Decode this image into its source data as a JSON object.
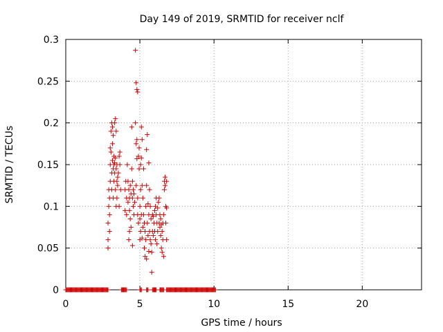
{
  "chart_data": {
    "type": "scatter",
    "title": "Day 149 of 2019, SRMTID for receiver nclf",
    "xlabel": "GPS time / hours",
    "ylabel": "SRMTID / TECUs",
    "xlim": [
      0,
      24
    ],
    "ylim": [
      0,
      0.3
    ],
    "x_ticks": [
      0,
      5,
      10,
      15,
      20
    ],
    "x_tick_labels": [
      "0",
      "5",
      "10",
      "15",
      "20"
    ],
    "y_ticks": [
      0,
      0.05,
      0.1,
      0.15,
      0.2,
      0.25,
      0.3
    ],
    "y_tick_labels": [
      "0",
      "0.05",
      "0.1",
      "0.15",
      "0.2",
      "0.25",
      "0.3"
    ],
    "grid": true,
    "marker": "plus",
    "color": "#cc0000",
    "series": [
      {
        "points": [
          [
            2.85,
            0.06
          ],
          [
            2.85,
            0.05
          ],
          [
            2.85,
            0.08
          ],
          [
            2.9,
            0.1
          ],
          [
            2.9,
            0.12
          ],
          [
            2.95,
            0.11
          ],
          [
            2.95,
            0.09
          ],
          [
            2.95,
            0.07
          ],
          [
            3.0,
            0.13
          ],
          [
            3.0,
            0.15
          ],
          [
            3.0,
            0.17
          ],
          [
            3.05,
            0.165
          ],
          [
            3.05,
            0.19
          ],
          [
            3.1,
            0.14
          ],
          [
            3.1,
            0.12
          ],
          [
            3.1,
            0.2
          ],
          [
            3.15,
            0.155
          ],
          [
            3.15,
            0.175
          ],
          [
            3.15,
            0.195
          ],
          [
            3.2,
            0.145
          ],
          [
            3.2,
            0.11
          ],
          [
            3.2,
            0.185
          ],
          [
            3.25,
            0.15
          ],
          [
            3.25,
            0.16
          ],
          [
            3.25,
            0.13
          ],
          [
            3.3,
            0.14
          ],
          [
            3.3,
            0.152
          ],
          [
            3.3,
            0.2
          ],
          [
            3.35,
            0.158
          ],
          [
            3.35,
            0.205
          ],
          [
            3.35,
            0.12
          ],
          [
            3.4,
            0.19
          ],
          [
            3.4,
            0.145
          ],
          [
            3.4,
            0.1
          ],
          [
            3.45,
            0.11
          ],
          [
            3.45,
            0.13
          ],
          [
            3.45,
            0.15
          ],
          [
            3.5,
            0.125
          ],
          [
            3.5,
            0.135
          ],
          [
            3.55,
            0.14
          ],
          [
            3.6,
            0.16
          ],
          [
            3.6,
            0.1
          ],
          [
            3.65,
            0.15
          ],
          [
            3.65,
            0.165
          ],
          [
            3.7,
            0.12
          ],
          [
            4.0,
            0.12
          ],
          [
            4.0,
            0.095
          ],
          [
            4.05,
            0.13
          ],
          [
            4.1,
            0.11
          ],
          [
            4.1,
            0.09
          ],
          [
            4.15,
            0.15
          ],
          [
            4.2,
            0.105
          ],
          [
            4.2,
            0.13
          ],
          [
            4.25,
            0.12
          ],
          [
            4.25,
            0.06
          ],
          [
            4.3,
            0.11
          ],
          [
            4.3,
            0.07
          ],
          [
            4.3,
            0.095
          ],
          [
            4.35,
            0.125
          ],
          [
            4.35,
            0.085
          ],
          [
            4.4,
            0.115
          ],
          [
            4.4,
            0.075
          ],
          [
            4.45,
            0.195
          ],
          [
            4.45,
            0.145
          ],
          [
            4.5,
            0.11
          ],
          [
            4.5,
            0.13
          ],
          [
            4.5,
            0.053
          ],
          [
            4.55,
            0.1
          ],
          [
            4.55,
            0.12
          ],
          [
            4.6,
            0.09
          ],
          [
            4.6,
            0.115
          ],
          [
            4.65,
            0.105
          ],
          [
            4.7,
            0.287
          ],
          [
            4.7,
            0.2
          ],
          [
            4.75,
            0.248
          ],
          [
            4.75,
            0.175
          ],
          [
            4.75,
            0.125
          ],
          [
            4.8,
            0.24
          ],
          [
            4.8,
            0.18
          ],
          [
            4.8,
            0.157
          ],
          [
            4.85,
            0.237
          ],
          [
            4.85,
            0.11
          ],
          [
            4.85,
            0.09
          ],
          [
            4.9,
            0.16
          ],
          [
            4.9,
            0.08
          ],
          [
            4.95,
            0.17
          ],
          [
            4.95,
            0.145
          ],
          [
            5.0,
            0.1
          ],
          [
            5.0,
            0.085
          ],
          [
            5.0,
            0.06
          ],
          [
            5.05,
            0.15
          ],
          [
            5.05,
            0.12
          ],
          [
            5.05,
            0.07
          ],
          [
            5.1,
            0.195
          ],
          [
            5.1,
            0.158
          ],
          [
            5.1,
            0.09
          ],
          [
            5.15,
            0.18
          ],
          [
            5.15,
            0.125
          ],
          [
            5.15,
            0.062
          ],
          [
            5.2,
            0.11
          ],
          [
            5.2,
            0.075
          ],
          [
            5.25,
            0.09
          ],
          [
            5.25,
            0.145
          ],
          [
            5.3,
            0.08
          ],
          [
            5.3,
            0.05
          ],
          [
            5.35,
            0.07
          ],
          [
            5.35,
            0.04
          ],
          [
            5.4,
            0.06
          ],
          [
            5.4,
            0.1
          ],
          [
            5.45,
            0.168
          ],
          [
            5.45,
            0.125
          ],
          [
            5.45,
            0.037
          ],
          [
            5.5,
            0.186
          ],
          [
            5.5,
            0.08
          ],
          [
            5.55,
            0.103
          ],
          [
            5.55,
            0.065
          ],
          [
            5.6,
            0.152
          ],
          [
            5.6,
            0.09
          ],
          [
            5.6,
            0.046
          ],
          [
            5.65,
            0.12
          ],
          [
            5.65,
            0.07
          ],
          [
            5.7,
            0.1
          ],
          [
            5.7,
            0.06
          ],
          [
            5.75,
            0.085
          ],
          [
            5.75,
            0.055
          ],
          [
            5.8,
            0.045
          ],
          [
            5.8,
            0.021
          ],
          [
            5.85,
            0.07
          ],
          [
            5.85,
            0.09
          ],
          [
            5.9,
            0.065
          ],
          [
            5.9,
            0.088
          ],
          [
            5.95,
            0.08
          ],
          [
            6.0,
            0.095
          ],
          [
            6.0,
            0.07
          ],
          [
            6.05,
            0.1
          ],
          [
            6.05,
            0.06
          ],
          [
            6.1,
            0.11
          ],
          [
            6.1,
            0.09
          ],
          [
            6.15,
            0.08
          ],
          [
            6.15,
            0.055
          ],
          [
            6.2,
            0.098
          ],
          [
            6.2,
            0.07
          ],
          [
            6.25,
            0.105
          ],
          [
            6.3,
            0.08
          ],
          [
            6.3,
            0.11
          ],
          [
            6.35,
            0.075
          ],
          [
            6.35,
            0.09
          ],
          [
            6.4,
            0.065
          ],
          [
            6.4,
            0.085
          ],
          [
            6.45,
            0.05
          ],
          [
            6.45,
            0.078
          ],
          [
            6.5,
            0.045
          ],
          [
            6.5,
            0.07
          ],
          [
            6.55,
            0.06
          ],
          [
            6.55,
            0.08
          ],
          [
            6.6,
            0.04
          ],
          [
            6.6,
            0.09
          ],
          [
            6.65,
            0.12
          ],
          [
            6.65,
            0.13
          ],
          [
            6.7,
            0.125
          ],
          [
            6.7,
            0.135
          ],
          [
            6.75,
            0.1
          ],
          [
            6.75,
            0.08
          ],
          [
            6.8,
            0.098
          ],
          [
            6.8,
            0.13
          ],
          [
            6.8,
            0.06
          ]
        ]
      }
    ],
    "zero_segments": [
      [
        0,
        2.85
      ],
      [
        3.75,
        4.1
      ],
      [
        5.0,
        5.1
      ],
      [
        5.45,
        5.55
      ],
      [
        5.85,
        6.1
      ],
      [
        6.35,
        6.6
      ],
      [
        6.8,
        10.1
      ]
    ]
  }
}
